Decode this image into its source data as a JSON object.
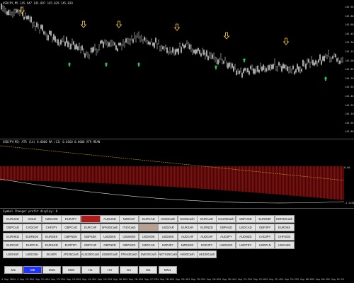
{
  "chart_title": "USDJPY,M5  145.947 145.897 145.839 145.839",
  "price_axis": [
    "145.95",
    "145.80",
    "145.60",
    "145.45",
    "145.30",
    "145.15",
    "145.00",
    "144.85",
    "144.70",
    "144.55",
    "144.40",
    "144.25",
    "144.10",
    "143.95",
    "143.80"
  ],
  "indicator_title": "USDJPY(M5) ATR (14) 0.0000 MA (13) 0.0160 0.0000 ATR MEAN",
  "indicator_axis": [
    "0.00",
    "-1.21000"
  ],
  "panel_title": "Symbol Changer profit display: 0",
  "symbols": [
    [
      "EURUSD",
      "GOLD",
      "NZDUSD",
      "EURJPY",
      "",
      "AUDUSD",
      "NZDCHF",
      "EURCAD",
      "US30Cash",
      "EU50Cash",
      "EURAUD",
      "US100Cash",
      "GBPUSD",
      "EURGBP",
      "GER40Cash"
    ],
    [
      "GBPCAD",
      "CADCHF",
      "CHFJPY",
      "GBPCAD",
      "EURCHF",
      "SPN35Cash",
      "IT40Cash",
      "",
      "USDZAR",
      "EURZAR",
      "EURNZD",
      "GBPAUD",
      "USDCAD",
      "GBPJPY",
      "EURDKK"
    ],
    [
      "EURHKD",
      "EURNOK",
      "EURSEK",
      "GBPNOK",
      "GBPSEK",
      "USDDKK",
      "USDMXN",
      "USDNOK",
      "USDSEK",
      "AUDCHF",
      "AUDCHF",
      "AUDJPY",
      "AUDNZD",
      "CADJPY",
      "CHFSGD"
    ],
    [
      "EURCHF",
      "EURPLN",
      "EURSGD",
      "EURTRY",
      "GBPCHF",
      "GBPNZD",
      "GBPSGD",
      "NZDCAD",
      "NZDJPY",
      "NZDSGD",
      "SGDJPY",
      "USDSGD",
      "USDTRY",
      "USDPLN",
      "USDHKD"
    ],
    [
      "USDHUF",
      "USDCNH",
      "SILVER",
      "JP225Cash",
      "AUS200Cash",
      "US500Cash",
      "FRA40Cash",
      "SWI20Cash",
      "NETH25Cash",
      "HK50Cash",
      "UK100Cash"
    ]
  ],
  "timeframes": [
    "M1",
    "M5",
    "M15",
    "M30",
    "H1",
    "H4",
    "D1",
    "W1",
    "MN1"
  ],
  "selected_timeframe": "M5",
  "time_labels": [
    "4 Sep 2024",
    "4 Sep 12:05",
    "4 Sep 12:45",
    "4 Sep 13:25",
    "4 Sep 14:05",
    "4 Sep 14:45",
    "4 Sep 15:25",
    "4 Sep 16:05",
    "4 Sep 16:45",
    "4 Sep 17:25",
    "4 Sep 18:05",
    "4 Sep 18:45",
    "4 Sep 19:25",
    "4 Sep 20:05",
    "4 Sep 20:45",
    "4 Sep 21:25",
    "4 Sep 22:05",
    "4 Sep 22:45",
    "4 Sep 23:25",
    "5 Sep 00:05",
    "5 Sep 00:45",
    "5 Sep 01:25"
  ],
  "colors": {
    "background": "#000000",
    "candle": "#d0d0d0",
    "down_arrow": "#ffd23a",
    "up_arrow": "#22c84a",
    "histogram": "#8a0d0d",
    "ma_line": "#c8a800",
    "atr_curve": "#dddddd"
  }
}
